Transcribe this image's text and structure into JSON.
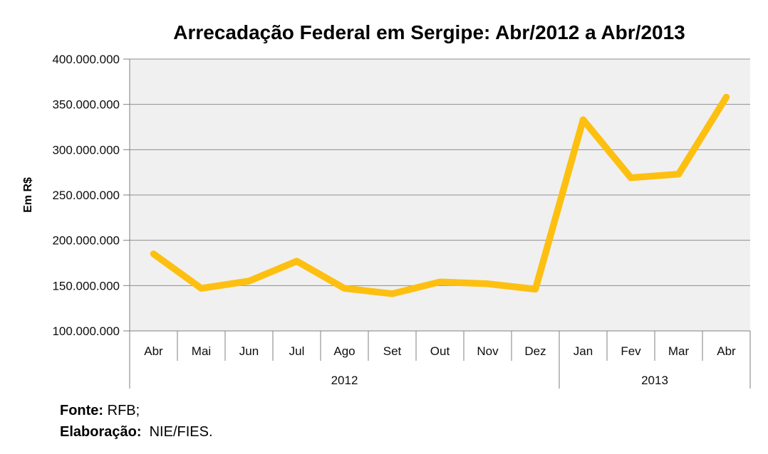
{
  "chart_data": {
    "type": "line",
    "title": "Arrecadação Federal em Sergipe: Abr/2012 a Abr/2013",
    "ylabel": "Em R$",
    "xlabel": "",
    "categories": [
      "Abr",
      "Mai",
      "Jun",
      "Jul",
      "Ago",
      "Set",
      "Out",
      "Nov",
      "Dez",
      "Jan",
      "Fev",
      "Mar",
      "Abr"
    ],
    "year_groups": [
      {
        "label": "2012",
        "start": 0,
        "count": 9
      },
      {
        "label": "2013",
        "start": 9,
        "count": 4
      }
    ],
    "values": [
      185000000,
      147000000,
      155000000,
      177000000,
      147000000,
      141000000,
      154000000,
      152000000,
      146000000,
      333000000,
      269000000,
      273000000,
      358000000
    ],
    "ylim": [
      100000000,
      400000000
    ],
    "ytick_step": 50000000,
    "ytick_labels": [
      "100.000.000",
      "150.000.000",
      "200.000.000",
      "250.000.000",
      "300.000.000",
      "350.000.000",
      "400.000.000"
    ],
    "grid": true,
    "legend": "none",
    "line_color": "#FDC011",
    "plot_bg": "#F0F0F0",
    "grid_color": "#8F8F8F",
    "axis_color": "#7F7F7F"
  },
  "footer": {
    "fonte_label": "Fonte:",
    "fonte_value": " RFB;",
    "elaboracao_label": "Elaboração:",
    "elaboracao_value": "  NIE/FIES."
  }
}
